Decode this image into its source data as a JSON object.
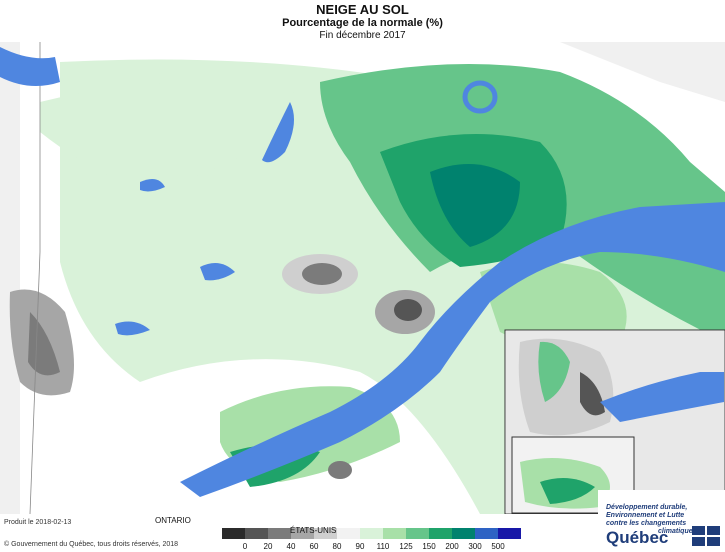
{
  "title": "NEIGE AU SOL",
  "subtitle": "Pourcentage de la normale (%)",
  "period": "Fin décembre 2017",
  "labels": {
    "ontario": "ONTARIO",
    "usa": "ÉTATS-UNIS"
  },
  "produced": "Produit le 2018-02-13",
  "copyright": "© Gouvernement du Québec, tous droits réservés, 2018",
  "legend": {
    "colors": [
      "#2b2b2b",
      "#555555",
      "#7b7b7b",
      "#a6a6a6",
      "#cfcfcf",
      "#f2f2f2",
      "#d9f2d9",
      "#a8e0a8",
      "#66c58a",
      "#1fa36a",
      "#00826e",
      "#2e63c4",
      "#1818a8"
    ],
    "ticks": [
      "0",
      "20",
      "40",
      "60",
      "80",
      "90",
      "110",
      "125",
      "150",
      "200",
      "300",
      "500"
    ]
  },
  "logo": {
    "lines": [
      "Développement durable,",
      "Environnement et Lutte",
      "contre les changements",
      "climatiques"
    ],
    "name": "Québec"
  }
}
